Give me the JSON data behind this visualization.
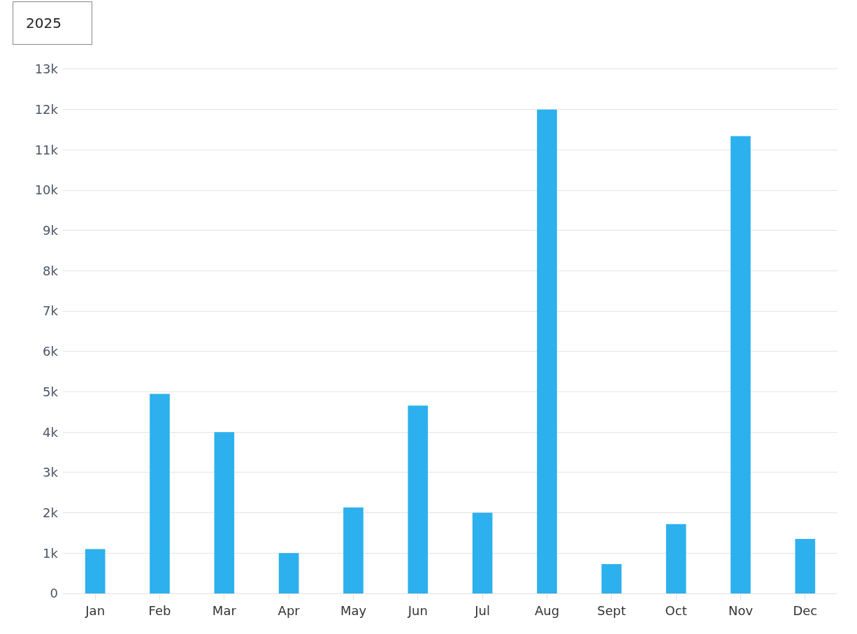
{
  "chart_data": {
    "type": "bar",
    "categories": [
      "Jan",
      "Feb",
      "Mar",
      "Apr",
      "May",
      "Jun",
      "Jul",
      "Aug",
      "Sept",
      "Oct",
      "Nov",
      "Dec"
    ],
    "values": [
      1100,
      4950,
      4000,
      1000,
      2130,
      4660,
      2000,
      12000,
      730,
      1720,
      11340,
      1350
    ],
    "color": "#2cb0ee",
    "ylim": [
      0,
      13000
    ],
    "yticks": [
      0,
      {
        "value": 1000,
        "label": "1k"
      },
      {
        "value": 2000,
        "label": "2k"
      },
      {
        "value": 3000,
        "label": "3k"
      },
      {
        "value": 4000,
        "label": "4k"
      },
      {
        "value": 5000,
        "label": "5k"
      },
      {
        "value": 6000,
        "label": "6k"
      },
      {
        "value": 7000,
        "label": "7k"
      },
      {
        "value": 8000,
        "label": "8k"
      },
      {
        "value": 9000,
        "label": "9k"
      },
      {
        "value": 10000,
        "label": "10k"
      },
      {
        "value": 11000,
        "label": "11k"
      },
      {
        "value": 12000,
        "label": "12k"
      },
      {
        "value": 13000,
        "label": "13k"
      }
    ],
    "grid": "y",
    "annotations": [
      "2025"
    ]
  }
}
